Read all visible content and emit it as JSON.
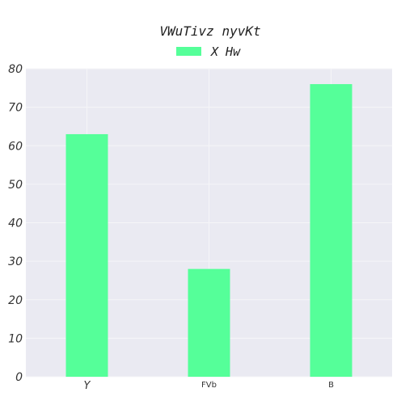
{
  "chart_data": {
    "type": "bar",
    "title": "VWuTivz nyvKt",
    "xlabel": "",
    "ylabel": "",
    "categories": [
      "Y",
      "FVb",
      "B"
    ],
    "series": [
      {
        "name": "X Hw",
        "values": [
          63,
          28,
          76
        ]
      }
    ],
    "ylim": [
      0,
      80
    ],
    "yticks": [
      0,
      10,
      20,
      30,
      40,
      50,
      60,
      70,
      80
    ],
    "grid": true,
    "legend": "top-center",
    "colors": {
      "bar": "#55ff99",
      "plot_bg": "#eaeaf2",
      "grid": "#f5f5f8"
    }
  }
}
